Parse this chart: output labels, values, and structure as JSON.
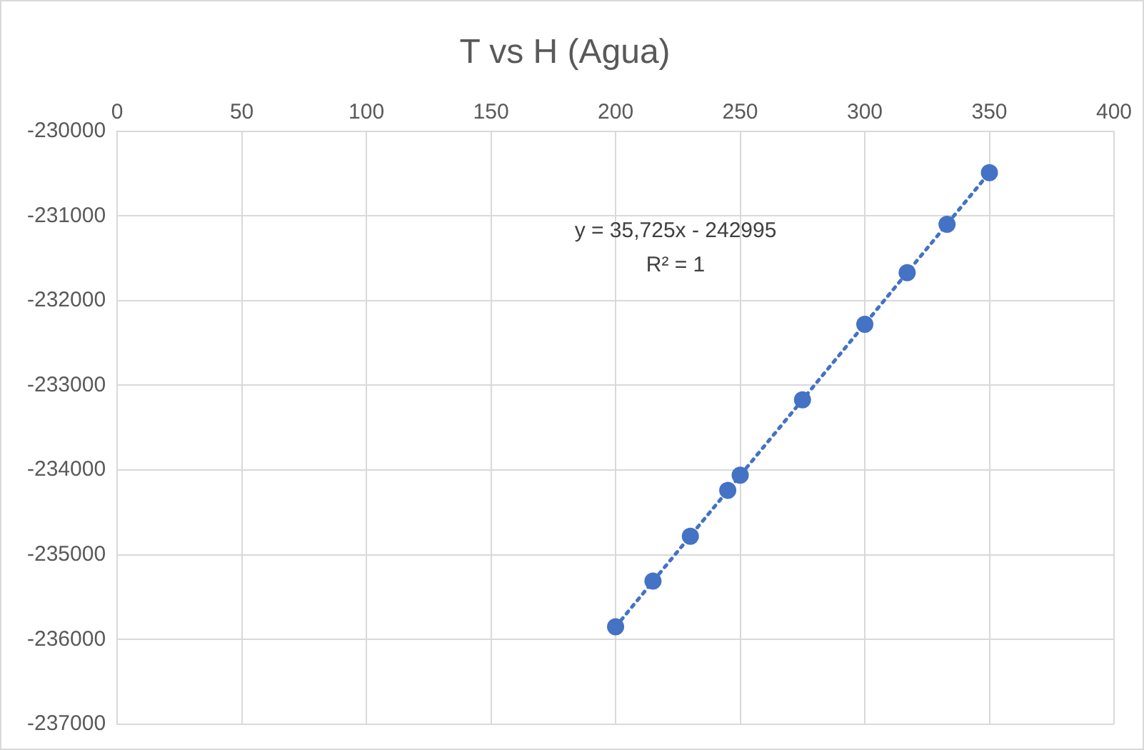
{
  "chart_data": {
    "type": "scatter",
    "title": "T vs H (Agua)",
    "series": [
      {
        "color": "#4472c4",
        "marker": "circle",
        "x": [
          200,
          215,
          230,
          245,
          250,
          275,
          300,
          317,
          333,
          350
        ],
        "values": [
          -235850,
          -235310,
          -234780,
          -234240,
          -234060,
          -233170,
          -232280,
          -231670,
          -231100,
          -230490
        ]
      },
      {
        "type": "line",
        "color": "#4472c4",
        "line_style": "dotted",
        "marker": "none",
        "x": [
          200,
          350
        ],
        "values": [
          -235850,
          -230490
        ]
      }
    ],
    "xlim": [
      0,
      400
    ],
    "xticks": [
      0,
      50,
      100,
      150,
      200,
      250,
      300,
      350,
      400
    ],
    "ylim": [
      -237000,
      -230000
    ],
    "yticks": [
      -237000,
      -236000,
      -235000,
      -234000,
      -233000,
      -232000,
      -231000,
      -230000
    ],
    "grid": true,
    "legend": false,
    "annotations": [
      "y = 35,725x - 242995",
      "R² = 1"
    ]
  }
}
